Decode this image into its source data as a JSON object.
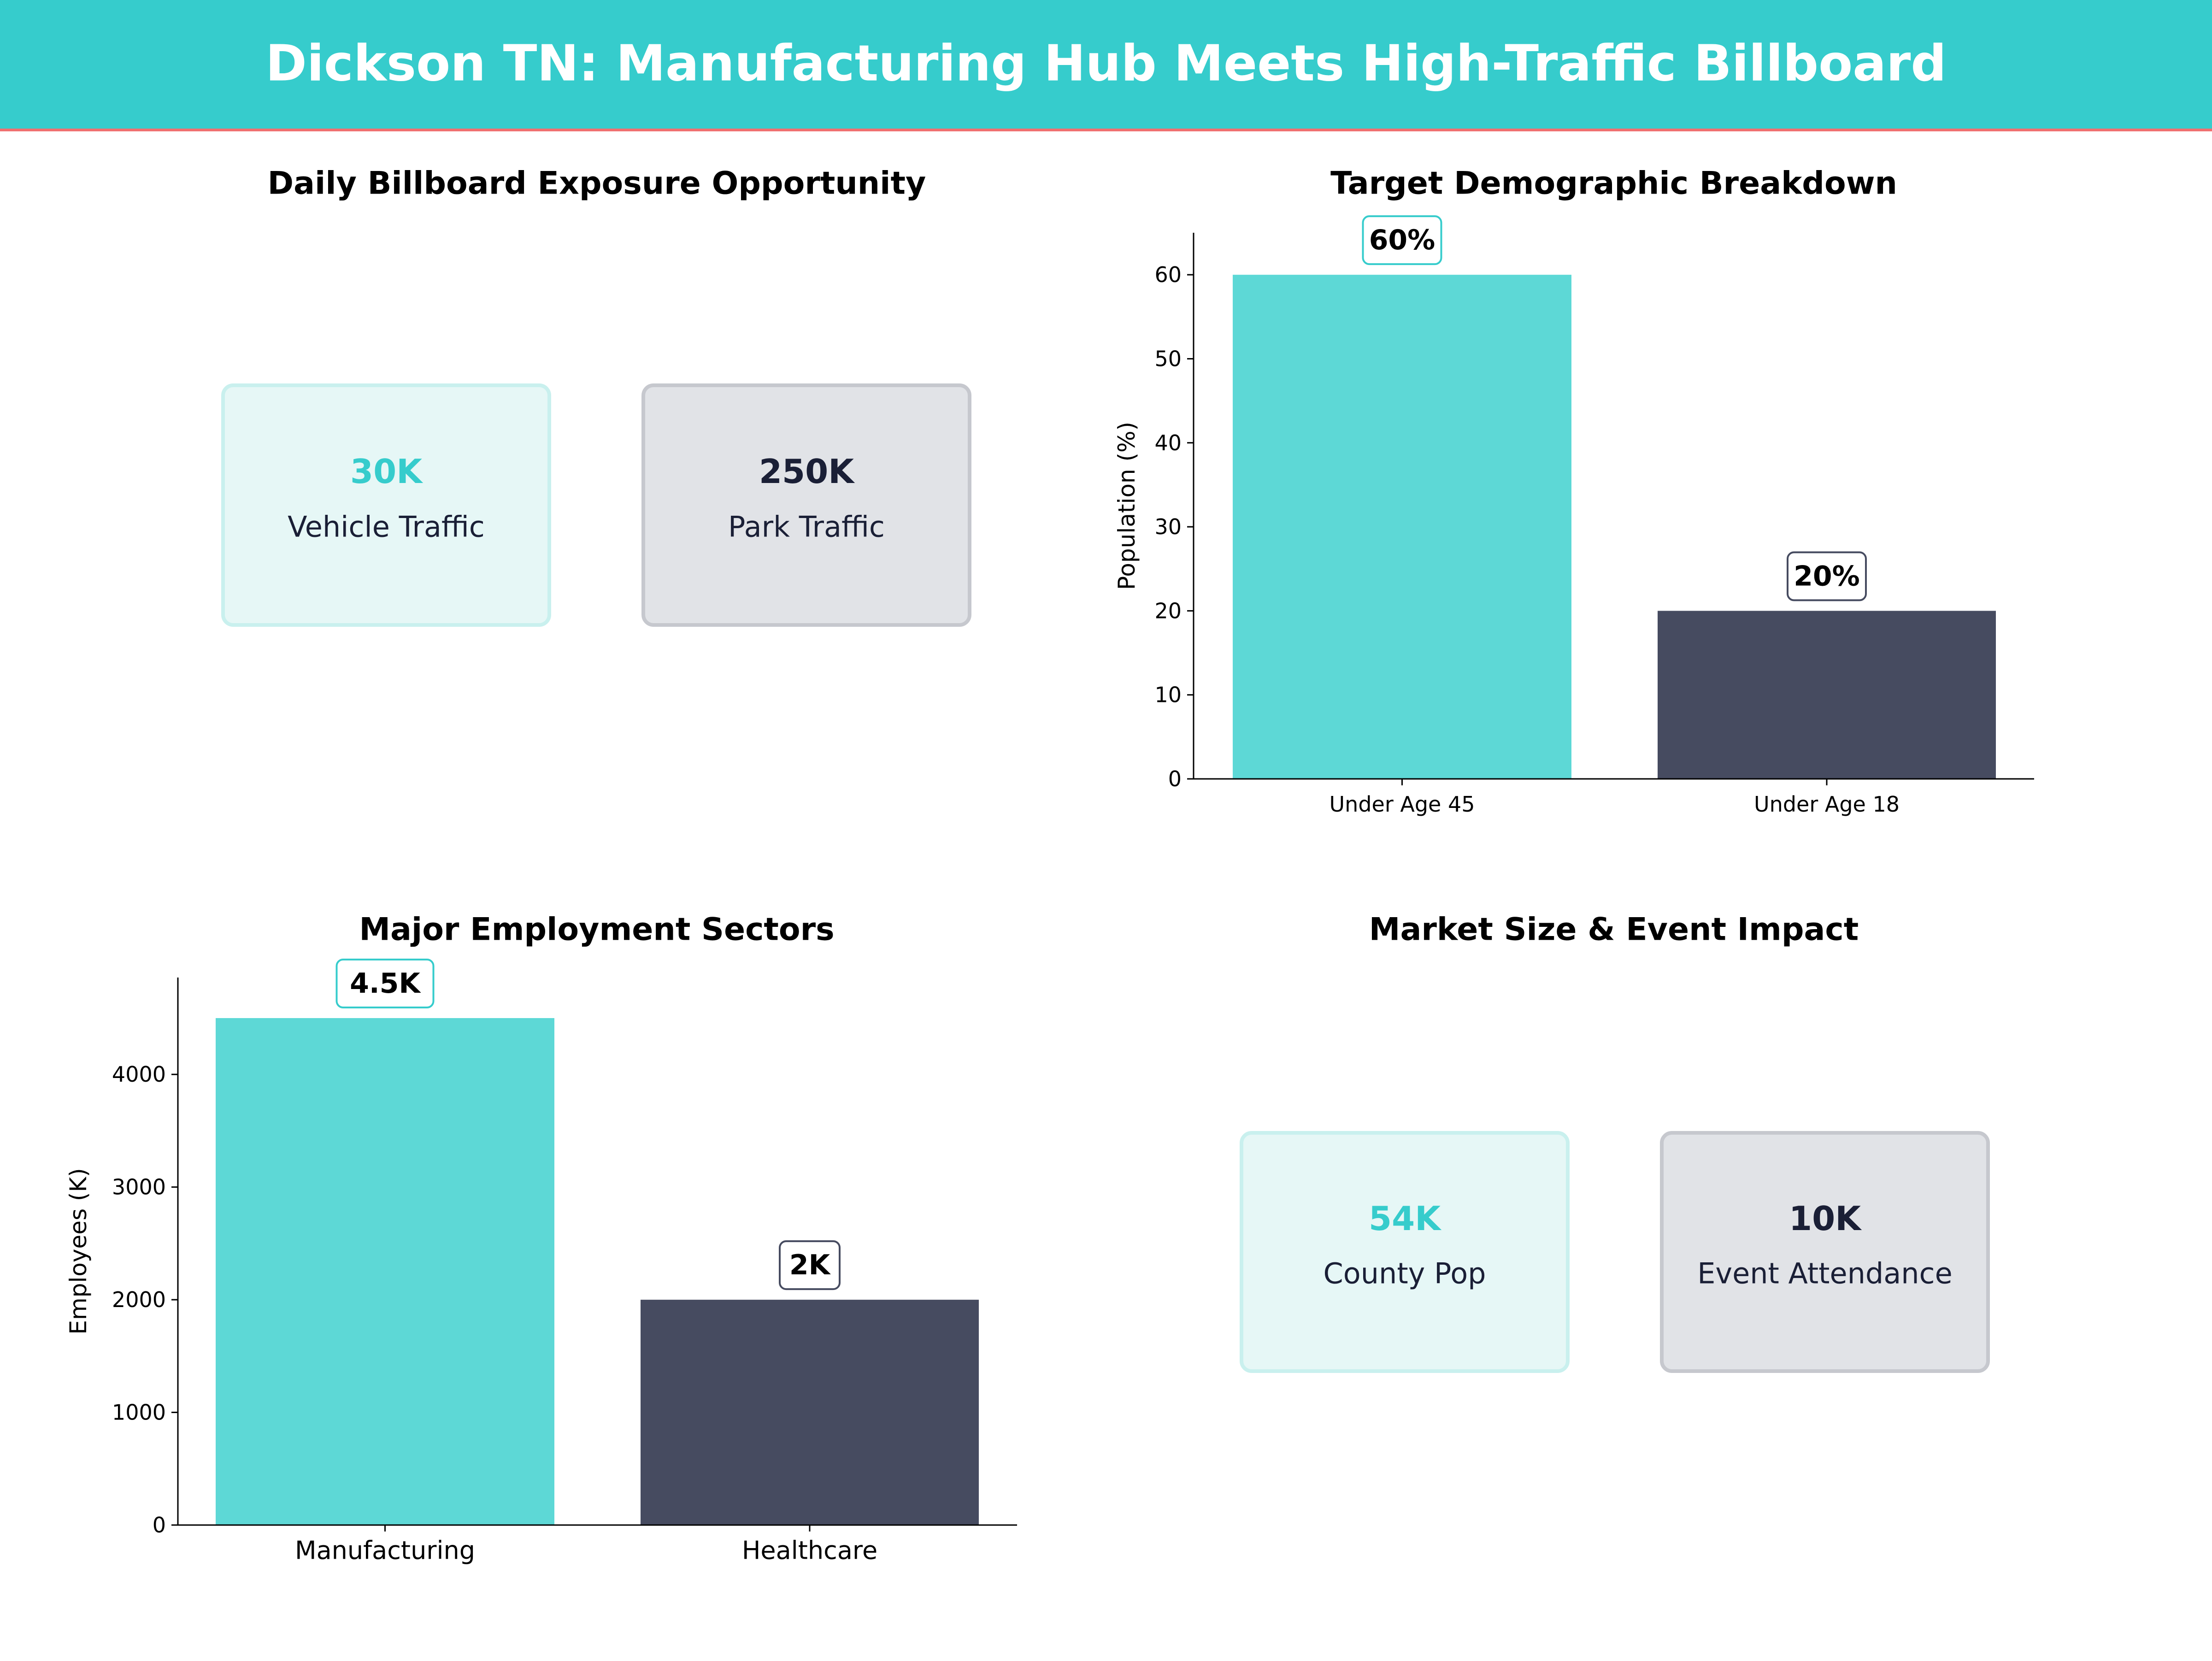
{
  "title": "Dickson TN: Manufacturing Hub Meets High-Traffic Billboard",
  "colors": {
    "header": "#36CCCC",
    "header_line": "#F07070",
    "teal": "#5DD8D6",
    "teal_text": "#36CCCC",
    "navy": "#464B60",
    "navy_text": "#1A1F36"
  },
  "panels": {
    "exposure": {
      "title": "Daily Billboard Exposure Opportunity",
      "cards": [
        {
          "value": "30K",
          "label": "Vehicle Traffic",
          "style": "teal"
        },
        {
          "value": "250K",
          "label": "Park Traffic",
          "style": "navy"
        }
      ]
    },
    "market": {
      "title": "Market Size & Event Impact",
      "cards": [
        {
          "value": "54K",
          "label": "County Pop",
          "style": "teal"
        },
        {
          "value": "10K",
          "label": "Event Attendance",
          "style": "navy"
        }
      ]
    }
  },
  "chart_data": [
    {
      "type": "bar",
      "title": "Target Demographic Breakdown",
      "categories": [
        "Under Age 45",
        "Under Age 18"
      ],
      "values": [
        60,
        20
      ],
      "data_labels": [
        "60%",
        "20%"
      ],
      "xlabel": "",
      "ylabel": "Population (%)",
      "ylim": [
        0,
        65
      ],
      "yticks": [
        0,
        10,
        20,
        30,
        40,
        50,
        60
      ],
      "grid": false
    },
    {
      "type": "bar",
      "title": "Major Employment Sectors",
      "categories": [
        "Manufacturing",
        "Healthcare"
      ],
      "values": [
        4500,
        2000
      ],
      "data_labels": [
        "4.5K",
        "2K"
      ],
      "xlabel": "",
      "ylabel": "Employees (K)",
      "ylim": [
        0,
        4860
      ],
      "yticks": [
        0,
        1000,
        2000,
        3000,
        4000
      ],
      "grid": false
    }
  ]
}
